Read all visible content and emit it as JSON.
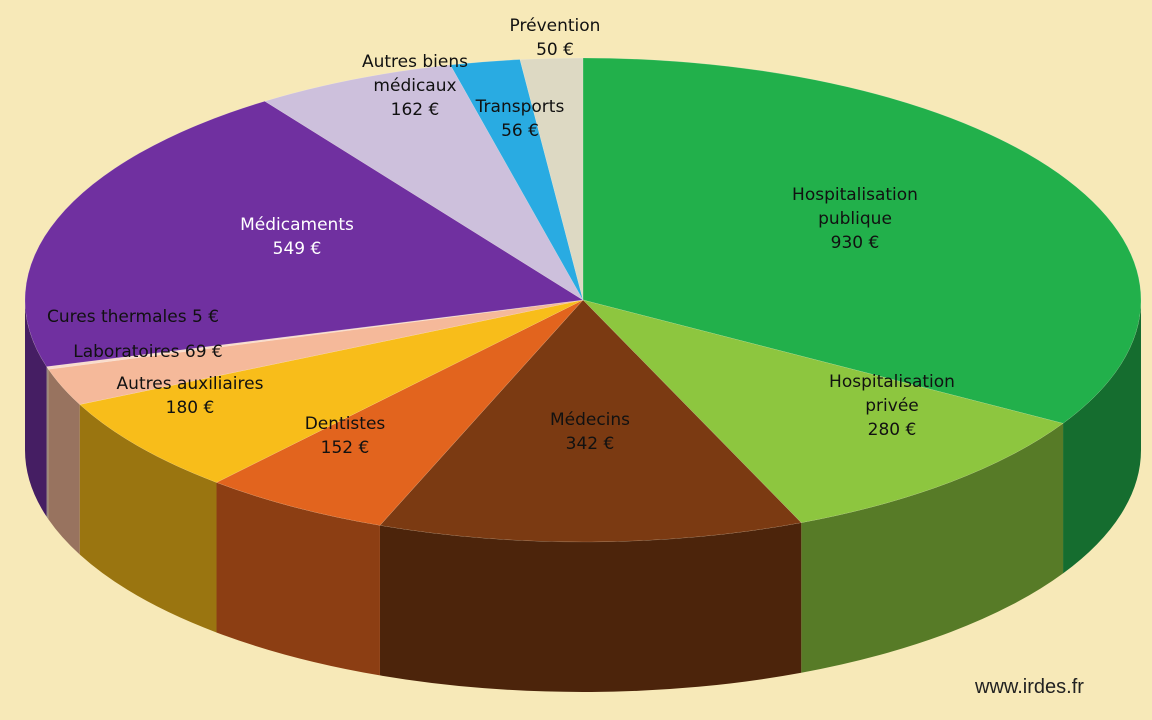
{
  "chart_data": {
    "type": "pie",
    "categories": [
      "Hospitalisation publique",
      "Hospitalisation privée",
      "Médecins",
      "Dentistes",
      "Autres auxiliaires",
      "Laboratoires",
      "Cures thermales",
      "Médicaments",
      "Autres biens médicaux",
      "Transports",
      "Prévention"
    ],
    "values": [
      930,
      280,
      342,
      152,
      180,
      69,
      5,
      549,
      162,
      56,
      50
    ],
    "value_labels": [
      "930 €",
      "280 €",
      "342 €",
      "152 €",
      "180 €",
      "69 €",
      "5 €",
      "549 €",
      "162 €",
      "56 €",
      "50 €"
    ],
    "colors": [
      "#22b04b",
      "#8dc63f",
      "#7b3a12",
      "#e2641e",
      "#f8bd1a",
      "#f5b99a",
      "#f9dccc",
      "#7030a0",
      "#cdc0dc",
      "#29abe2",
      "#ddd9c3"
    ],
    "source": "www.irdes.fr"
  }
}
